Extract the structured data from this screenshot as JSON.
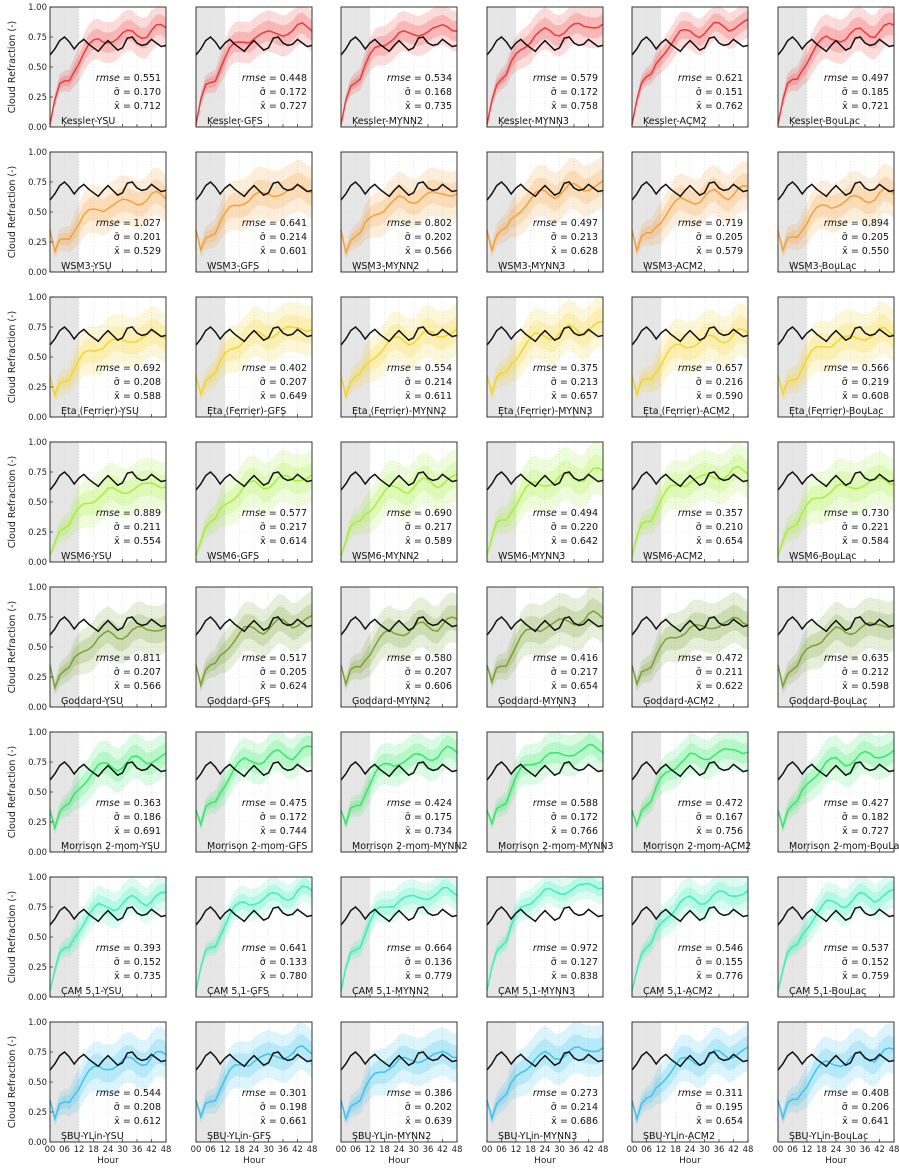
{
  "figure": {
    "ylabel": "Cloud Refraction (-)",
    "xlabel": "Hour",
    "x_ticks": [
      "00",
      "06",
      "12",
      "18",
      "24",
      "30",
      "36",
      "42",
      "48"
    ],
    "y_ticks": [
      "0.00",
      "0.25",
      "0.50",
      "0.75",
      "1.00"
    ],
    "microphysics": [
      "Kessler",
      "WSM3",
      "Eta (Ferrier)",
      "WSM6",
      "Goddard",
      "Morrison 2-mom",
      "CAM 5.1",
      "SBU-YLin"
    ],
    "pbl": [
      "YSU",
      "GFS",
      "MYNN2",
      "MYNN3",
      "ACM2",
      "BouLac"
    ],
    "row_colors": [
      "#f03a3a",
      "#f5a13a",
      "#f5d52c",
      "#a6f03c",
      "#7aa332",
      "#35e86a",
      "#3df0b8",
      "#3cc4f0"
    ],
    "stat_labels": {
      "rmse": "rmse",
      "sigma": "σ̄",
      "xbar": "x̄"
    }
  },
  "chart_data": {
    "type": "line",
    "x_range": [
      0,
      48
    ],
    "y_range": [
      0,
      1
    ],
    "shaded_hours": [
      0,
      12
    ],
    "grid": true,
    "observed_series": {
      "name": "observed",
      "x": [
        0,
        2,
        4,
        6,
        8,
        10,
        12,
        14,
        16,
        18,
        20,
        22,
        24,
        26,
        28,
        30,
        32,
        34,
        36,
        38,
        40,
        42,
        44,
        46,
        48
      ],
      "values": [
        0.6,
        0.65,
        0.72,
        0.75,
        0.71,
        0.65,
        0.7,
        0.73,
        0.69,
        0.66,
        0.63,
        0.68,
        0.72,
        0.68,
        0.64,
        0.66,
        0.74,
        0.75,
        0.7,
        0.68,
        0.69,
        0.73,
        0.7,
        0.67,
        0.68
      ]
    },
    "panels": [
      [
        {
          "label": "Kessler-YSU",
          "rmse": "0.551",
          "sigma": "0.170",
          "xbar": "0.712"
        },
        {
          "label": "Kessler-GFS",
          "rmse": "0.448",
          "sigma": "0.172",
          "xbar": "0.727"
        },
        {
          "label": "Kessler-MYNN2",
          "rmse": "0.534",
          "sigma": "0.168",
          "xbar": "0.735"
        },
        {
          "label": "Kessler-MYNN3",
          "rmse": "0.579",
          "sigma": "0.172",
          "xbar": "0.758"
        },
        {
          "label": "Kessler-ACM2",
          "rmse": "0.621",
          "sigma": "0.151",
          "xbar": "0.762"
        },
        {
          "label": "Kessler-BouLac",
          "rmse": "0.497",
          "sigma": "0.185",
          "xbar": "0.721"
        }
      ],
      [
        {
          "label": "WSM3-YSU",
          "rmse": "1.027",
          "sigma": "0.201",
          "xbar": "0.529"
        },
        {
          "label": "WSM3-GFS",
          "rmse": "0.641",
          "sigma": "0.214",
          "xbar": "0.601"
        },
        {
          "label": "WSM3-MYNN2",
          "rmse": "0.802",
          "sigma": "0.202",
          "xbar": "0.566"
        },
        {
          "label": "WSM3-MYNN3",
          "rmse": "0.497",
          "sigma": "0.213",
          "xbar": "0.628"
        },
        {
          "label": "WSM3-ACM2",
          "rmse": "0.719",
          "sigma": "0.205",
          "xbar": "0.579"
        },
        {
          "label": "WSM3-BouLac",
          "rmse": "0.894",
          "sigma": "0.205",
          "xbar": "0.550"
        }
      ],
      [
        {
          "label": "Eta (Ferrier)-YSU",
          "rmse": "0.692",
          "sigma": "0.208",
          "xbar": "0.588"
        },
        {
          "label": "Eta (Ferrier)-GFS",
          "rmse": "0.402",
          "sigma": "0.207",
          "xbar": "0.649"
        },
        {
          "label": "Eta (Ferrier)-MYNN2",
          "rmse": "0.554",
          "sigma": "0.214",
          "xbar": "0.611"
        },
        {
          "label": "Eta (Ferrier)-MYNN3",
          "rmse": "0.375",
          "sigma": "0.213",
          "xbar": "0.657"
        },
        {
          "label": "Eta (Ferrier)-ACM2",
          "rmse": "0.657",
          "sigma": "0.216",
          "xbar": "0.590"
        },
        {
          "label": "Eta (Ferrier)-BouLac",
          "rmse": "0.566",
          "sigma": "0.219",
          "xbar": "0.608"
        }
      ],
      [
        {
          "label": "WSM6-YSU",
          "rmse": "0.889",
          "sigma": "0.211",
          "xbar": "0.554"
        },
        {
          "label": "WSM6-GFS",
          "rmse": "0.577",
          "sigma": "0.217",
          "xbar": "0.614"
        },
        {
          "label": "WSM6-MYNN2",
          "rmse": "0.690",
          "sigma": "0.217",
          "xbar": "0.589"
        },
        {
          "label": "WSM6-MYNN3",
          "rmse": "0.494",
          "sigma": "0.220",
          "xbar": "0.642"
        },
        {
          "label": "WSM6-ACM2",
          "rmse": "0.357",
          "sigma": "0.210",
          "xbar": "0.654"
        },
        {
          "label": "WSM6-BouLac",
          "rmse": "0.730",
          "sigma": "0.221",
          "xbar": "0.584"
        }
      ],
      [
        {
          "label": "Goddard-YSU",
          "rmse": "0.811",
          "sigma": "0.207",
          "xbar": "0.566"
        },
        {
          "label": "Goddard-GFS",
          "rmse": "0.517",
          "sigma": "0.205",
          "xbar": "0.624"
        },
        {
          "label": "Goddard-MYNN2",
          "rmse": "0.580",
          "sigma": "0.207",
          "xbar": "0.606"
        },
        {
          "label": "Goddard-MYNN3",
          "rmse": "0.416",
          "sigma": "0.217",
          "xbar": "0.654"
        },
        {
          "label": "Goddard-ACM2",
          "rmse": "0.472",
          "sigma": "0.211",
          "xbar": "0.622"
        },
        {
          "label": "Goddard-BouLac",
          "rmse": "0.635",
          "sigma": "0.212",
          "xbar": "0.598"
        }
      ],
      [
        {
          "label": "Morrison 2-mom-YSU",
          "rmse": "0.363",
          "sigma": "0.186",
          "xbar": "0.691"
        },
        {
          "label": "Morrison 2-mom-GFS",
          "rmse": "0.475",
          "sigma": "0.172",
          "xbar": "0.744"
        },
        {
          "label": "Morrison 2-mom-MYNN2",
          "rmse": "0.424",
          "sigma": "0.175",
          "xbar": "0.734"
        },
        {
          "label": "Morrison 2-mom-MYNN3",
          "rmse": "0.588",
          "sigma": "0.172",
          "xbar": "0.766"
        },
        {
          "label": "Morrison 2-mom-ACM2",
          "rmse": "0.472",
          "sigma": "0.167",
          "xbar": "0.756"
        },
        {
          "label": "Morrison 2-mom-BouLac",
          "rmse": "0.427",
          "sigma": "0.182",
          "xbar": "0.727"
        }
      ],
      [
        {
          "label": "CAM 5.1-YSU",
          "rmse": "0.393",
          "sigma": "0.152",
          "xbar": "0.735"
        },
        {
          "label": "CAM 5.1-GFS",
          "rmse": "0.641",
          "sigma": "0.133",
          "xbar": "0.780"
        },
        {
          "label": "CAM 5.1-MYNN2",
          "rmse": "0.664",
          "sigma": "0.136",
          "xbar": "0.779"
        },
        {
          "label": "CAM 5.1-MYNN3",
          "rmse": "0.972",
          "sigma": "0.127",
          "xbar": "0.838"
        },
        {
          "label": "CAM 5.1-ACM2",
          "rmse": "0.546",
          "sigma": "0.155",
          "xbar": "0.776"
        },
        {
          "label": "CAM 5.1-BouLac",
          "rmse": "0.537",
          "sigma": "0.152",
          "xbar": "0.759"
        }
      ],
      [
        {
          "label": "SBU-YLin-YSU",
          "rmse": "0.544",
          "sigma": "0.208",
          "xbar": "0.612"
        },
        {
          "label": "SBU-YLin-GFS",
          "rmse": "0.301",
          "sigma": "0.198",
          "xbar": "0.661"
        },
        {
          "label": "SBU-YLin-MYNN2",
          "rmse": "0.386",
          "sigma": "0.202",
          "xbar": "0.639"
        },
        {
          "label": "SBU-YLin-MYNN3",
          "rmse": "0.273",
          "sigma": "0.214",
          "xbar": "0.686"
        },
        {
          "label": "SBU-YLin-ACM2",
          "rmse": "0.311",
          "sigma": "0.195",
          "xbar": "0.654"
        },
        {
          "label": "SBU-YLin-BouLac",
          "rmse": "0.408",
          "sigma": "0.206",
          "xbar": "0.641"
        }
      ]
    ]
  }
}
